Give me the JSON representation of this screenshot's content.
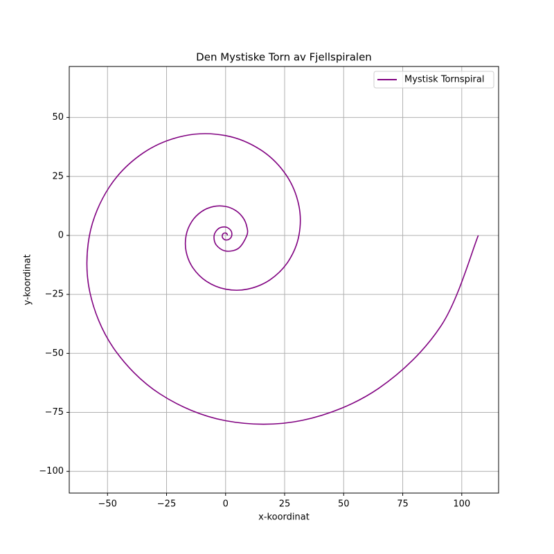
{
  "chart_data": {
    "type": "line",
    "title": "Den Mystiske Torn av Fjellspiralen",
    "x_label": "x-koordinat",
    "y_label": "y-koordinat",
    "xlim": [
      -66.2,
      115.6
    ],
    "ylim": [
      -109.2,
      71.6
    ],
    "xticks": [
      {
        "value": -50,
        "label": "−50"
      },
      {
        "value": -25,
        "label": "−25"
      },
      0,
      25,
      50,
      75,
      100
    ],
    "yticks": [
      {
        "value": -100,
        "label": "−100"
      },
      {
        "value": -75,
        "label": "−75"
      },
      {
        "value": -50,
        "label": "−50"
      },
      {
        "value": -25,
        "label": "−25"
      },
      0,
      25,
      50
    ],
    "grid": true,
    "legend_loc": "upper right",
    "series": [
      {
        "name": "Mystisk Tornspiral",
        "color": "#800080",
        "x": [
          0.76,
          0.62,
          0,
          -0.86,
          -1.41,
          -1.16,
          0,
          1.58,
          2.61,
          2.16,
          0,
          -2.94,
          -4.85,
          -4.0,
          0,
          5.46,
          9.01,
          8.99,
          7.43,
          4.35,
          0,
          -5.07,
          -10.13,
          -14.3,
          -16.72,
          -16.69,
          -13.8,
          -8.07,
          0,
          9.42,
          18.81,
          26.55,
          31.05,
          30.99,
          25.63,
          14.98,
          0,
          -17.49,
          -34.92,
          -49.29,
          -57.64,
          -57.53,
          -47.57,
          -27.82,
          0,
          32.47,
          64.82,
          91.5,
          107
        ],
        "y": [
          0,
          0.62,
          1.03,
          0.86,
          0,
          -1.16,
          -1.92,
          -1.58,
          0,
          2.16,
          3.56,
          2.94,
          0,
          -4.0,
          -6.61,
          -5.46,
          0,
          3.72,
          7.43,
          10.5,
          12.27,
          12.25,
          10.13,
          5.92,
          0,
          -6.92,
          -13.8,
          -19.48,
          -22.79,
          -22.75,
          -18.81,
          -11.0,
          0,
          12.84,
          25.63,
          36.17,
          42.3,
          42.22,
          34.92,
          20.42,
          0,
          -23.83,
          -47.57,
          -67.16,
          -78.53,
          -78.39,
          -64.82,
          -37.9,
          0
        ]
      }
    ]
  }
}
